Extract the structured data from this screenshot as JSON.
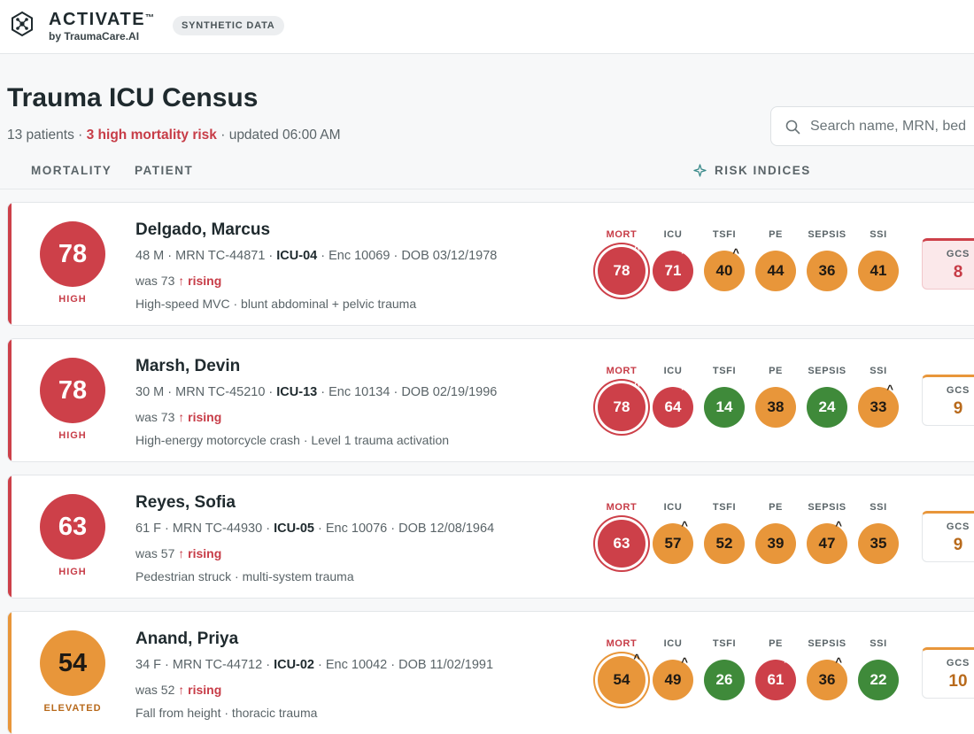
{
  "app": {
    "brand_name": "ACTIVATE",
    "brand_tm": "™",
    "brand_sub": "by TraumaCare.AI",
    "badge": "SYNTHETIC DATA"
  },
  "page": {
    "title": "Trauma ICU Census",
    "patient_count": "13 patients",
    "sep1": " · ",
    "high_risk": "3 high mortality risk",
    "updated": " · updated 06:00 AM"
  },
  "search": {
    "placeholder": "Search name, MRN, bed"
  },
  "columns": {
    "mortality": "MORTALITY",
    "patient": "PATIENT",
    "risk_indices": "RISK INDICES"
  },
  "index_labels": [
    "MORT",
    "ICU",
    "TSFI",
    "PE",
    "SEPSIS",
    "SSI"
  ],
  "gcs_label": "GCS",
  "patients": [
    {
      "score": "78",
      "level": "HIGH",
      "name": "Delgado, Marcus",
      "meta_a": "48 M · MRN TC-44871 · ",
      "bed": "ICU-04",
      "meta_b": " · Enc 10069 · DOB 03/12/1978",
      "was": "was 73 ",
      "trend": "↑ rising",
      "desc": "High-speed MVC · blunt abdominal + pelvic trauma",
      "indices": [
        {
          "v": "78",
          "c": "red",
          "up": true
        },
        {
          "v": "71",
          "c": "red",
          "up": true
        },
        {
          "v": "40",
          "c": "orange",
          "up": true
        },
        {
          "v": "44",
          "c": "orange",
          "up": false
        },
        {
          "v": "36",
          "c": "orange",
          "up": false
        },
        {
          "v": "41",
          "c": "orange",
          "up": false
        }
      ],
      "gcs": "8",
      "gcs_style": "red-tint",
      "accent": "#cd4049",
      "score_color": "#cd4049",
      "label_color": "#c73c47"
    },
    {
      "score": "78",
      "level": "HIGH",
      "name": "Marsh, Devin",
      "meta_a": "30 M · MRN TC-45210 · ",
      "bed": "ICU-13",
      "meta_b": " · Enc 10134 · DOB 02/19/1996",
      "was": "was 73 ",
      "trend": "↑ rising",
      "desc": "High-energy motorcycle crash · Level 1 trauma activation",
      "indices": [
        {
          "v": "78",
          "c": "red",
          "up": true
        },
        {
          "v": "64",
          "c": "red",
          "up": true
        },
        {
          "v": "14",
          "c": "green",
          "up": false
        },
        {
          "v": "38",
          "c": "orange",
          "up": false
        },
        {
          "v": "24",
          "c": "green",
          "up": false
        },
        {
          "v": "33",
          "c": "orange",
          "up": true
        }
      ],
      "gcs": "9",
      "gcs_style": "orange-top",
      "accent": "#cd4049",
      "score_color": "#cd4049",
      "label_color": "#c73c47"
    },
    {
      "score": "63",
      "level": "HIGH",
      "name": "Reyes, Sofia",
      "meta_a": "61 F · MRN TC-44930 · ",
      "bed": "ICU-05",
      "meta_b": " · Enc 10076 · DOB 12/08/1964",
      "was": "was 57 ",
      "trend": "↑ rising",
      "desc": "Pedestrian struck · multi-system trauma",
      "indices": [
        {
          "v": "63",
          "c": "red",
          "up": false
        },
        {
          "v": "57",
          "c": "orange",
          "up": true
        },
        {
          "v": "52",
          "c": "orange",
          "up": false
        },
        {
          "v": "39",
          "c": "orange",
          "up": false
        },
        {
          "v": "47",
          "c": "orange",
          "up": true
        },
        {
          "v": "35",
          "c": "orange",
          "up": false
        }
      ],
      "gcs": "9",
      "gcs_style": "orange-top",
      "accent": "#cd4049",
      "score_color": "#cd4049",
      "label_color": "#c73c47"
    },
    {
      "score": "54",
      "level": "ELEVATED",
      "name": "Anand, Priya",
      "meta_a": "34 F · MRN TC-44712 · ",
      "bed": "ICU-02",
      "meta_b": " · Enc 10042 · DOB 11/02/1991",
      "was": "was 52 ",
      "trend": "↑ rising",
      "desc": "Fall from height · thoracic trauma",
      "indices": [
        {
          "v": "54",
          "c": "orange",
          "up": true
        },
        {
          "v": "49",
          "c": "orange",
          "up": true
        },
        {
          "v": "26",
          "c": "green",
          "up": false
        },
        {
          "v": "61",
          "c": "red",
          "up": true
        },
        {
          "v": "36",
          "c": "orange",
          "up": true
        },
        {
          "v": "22",
          "c": "green",
          "up": false
        }
      ],
      "gcs": "10",
      "gcs_style": "orange-top",
      "accent": "#e8963a",
      "score_color": "#e8963a",
      "label_color": "#b86a1c"
    }
  ]
}
